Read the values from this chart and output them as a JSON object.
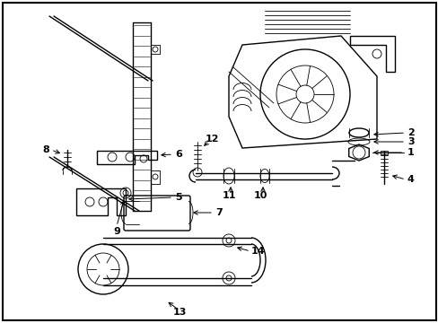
{
  "background_color": "#ffffff",
  "border_color": "#000000",
  "fig_width": 4.89,
  "fig_height": 3.6,
  "dpi": 100,
  "line_color": "#000000",
  "font_size_labels": 8
}
